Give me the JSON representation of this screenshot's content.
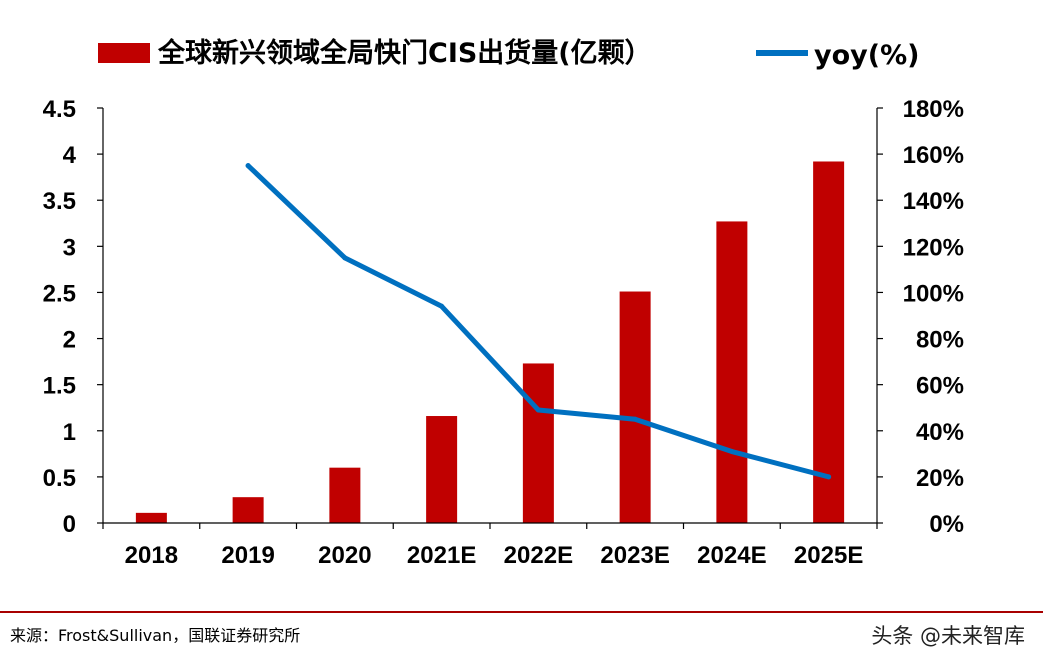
{
  "chart_data": {
    "type": "bar",
    "categories": [
      "2018",
      "2019",
      "2020",
      "2021E",
      "2022E",
      "2023E",
      "2024E",
      "2025E"
    ],
    "series": [
      {
        "name": "全球新兴领域全局快门CIS出货量(亿颗）",
        "type": "bar",
        "axis": "left",
        "color": "#c00000",
        "values": [
          0.11,
          0.28,
          0.6,
          1.16,
          1.73,
          2.51,
          3.27,
          3.92
        ]
      },
      {
        "name": "yoy(%)",
        "type": "line",
        "axis": "right",
        "color": "#0070c0",
        "values": [
          null,
          155,
          115,
          94,
          49,
          45,
          31,
          20
        ]
      }
    ],
    "left_axis": {
      "min": 0,
      "max": 4.5,
      "ticks": [
        "0",
        "0.5",
        "1",
        "1.5",
        "2",
        "2.5",
        "3",
        "3.5",
        "4",
        "4.5"
      ]
    },
    "right_axis": {
      "min": 0,
      "max": 180,
      "ticks": [
        "0%",
        "20%",
        "40%",
        "60%",
        "80%",
        "100%",
        "120%",
        "140%",
        "160%",
        "180%"
      ]
    },
    "legend_position": "top",
    "grid": false
  },
  "footer": {
    "source": "来源：Frost&Sullivan，国联证券研究所",
    "watermark": "头条 @未来智库"
  }
}
